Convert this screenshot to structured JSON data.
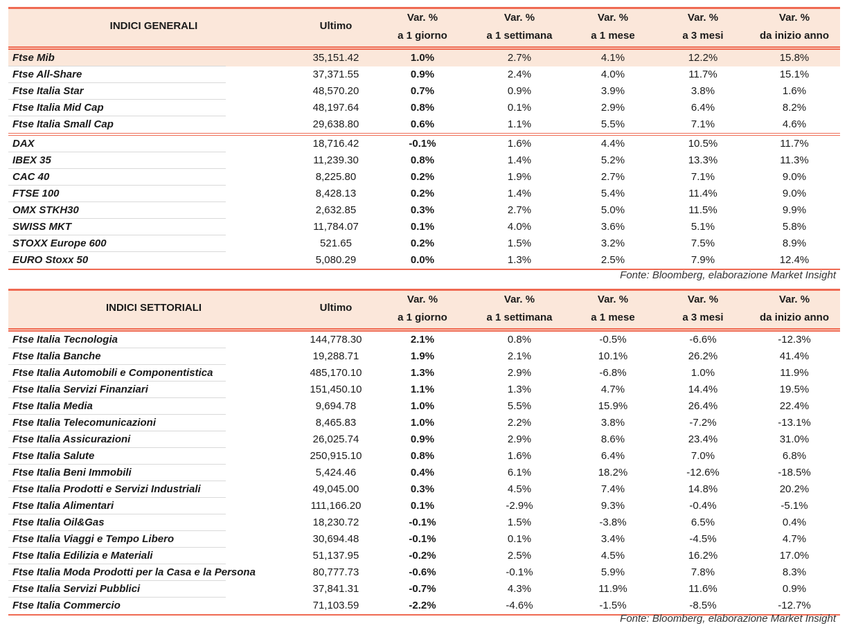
{
  "general": {
    "title": "INDICI GENERALI",
    "headers": {
      "ultimo": "Ultimo",
      "var": [
        "Var. %",
        "Var. %",
        "Var. %",
        "Var. %",
        "Var. %"
      ],
      "period": [
        "a 1 giorno",
        "a 1 settimana",
        "a 1 mese",
        "a 3 mesi",
        "da inizio anno"
      ]
    },
    "rows": [
      [
        "Ftse Mib",
        "35,151.42",
        "1.0%",
        "2.7%",
        "4.1%",
        "12.2%",
        "15.8%"
      ],
      [
        "Ftse All-Share",
        "37,371.55",
        "0.9%",
        "2.4%",
        "4.0%",
        "11.7%",
        "15.1%"
      ],
      [
        "Ftse Italia Star",
        "48,570.20",
        "0.7%",
        "0.9%",
        "3.9%",
        "3.8%",
        "1.6%"
      ],
      [
        "Ftse Italia Mid Cap",
        "48,197.64",
        "0.8%",
        "0.1%",
        "2.9%",
        "6.4%",
        "8.2%"
      ],
      [
        "Ftse Italia Small Cap",
        "29,638.80",
        "0.6%",
        "1.1%",
        "5.5%",
        "7.1%",
        "4.6%"
      ],
      [
        "DAX",
        "18,716.42",
        "-0.1%",
        "1.6%",
        "4.4%",
        "10.5%",
        "11.7%"
      ],
      [
        "IBEX 35",
        "11,239.30",
        "0.8%",
        "1.4%",
        "5.2%",
        "13.3%",
        "11.3%"
      ],
      [
        "CAC 40",
        "8,225.80",
        "0.2%",
        "1.9%",
        "2.7%",
        "7.1%",
        "9.0%"
      ],
      [
        "FTSE 100",
        "8,428.13",
        "0.2%",
        "1.4%",
        "5.4%",
        "11.4%",
        "9.0%"
      ],
      [
        "OMX STKH30",
        "2,632.85",
        "0.3%",
        "2.7%",
        "5.0%",
        "11.5%",
        "9.9%"
      ],
      [
        "SWISS MKT",
        "11,784.07",
        "0.1%",
        "4.0%",
        "3.6%",
        "5.1%",
        "5.8%"
      ],
      [
        "STOXX Europe 600",
        "521.65",
        "0.2%",
        "1.5%",
        "3.2%",
        "7.5%",
        "8.9%"
      ],
      [
        "EURO Stoxx 50",
        "5,080.29",
        "0.0%",
        "1.3%",
        "2.5%",
        "7.9%",
        "12.4%"
      ]
    ],
    "source": "Fonte: Bloomberg, elaborazione Market Insight"
  },
  "sector": {
    "title": "INDICI SETTORIALI",
    "headers": {
      "ultimo": "Ultimo",
      "var": [
        "Var. %",
        "Var. %",
        "Var. %",
        "Var. %",
        "Var. %"
      ],
      "period": [
        "a 1 giorno",
        "a 1 settimana",
        "a 1 mese",
        "a 3 mesi",
        "da inizio anno"
      ]
    },
    "rows": [
      [
        "Ftse Italia Tecnologia",
        "144,778.30",
        "2.1%",
        "0.8%",
        "-0.5%",
        "-6.6%",
        "-12.3%"
      ],
      [
        "Ftse Italia Banche",
        "19,288.71",
        "1.9%",
        "2.1%",
        "10.1%",
        "26.2%",
        "41.4%"
      ],
      [
        "Ftse Italia Automobili e Componentistica",
        "485,170.10",
        "1.3%",
        "2.9%",
        "-6.8%",
        "1.0%",
        "11.9%"
      ],
      [
        "Ftse Italia Servizi Finanziari",
        "151,450.10",
        "1.1%",
        "1.3%",
        "4.7%",
        "14.4%",
        "19.5%"
      ],
      [
        "Ftse Italia Media",
        "9,694.78",
        "1.0%",
        "5.5%",
        "15.9%",
        "26.4%",
        "22.4%"
      ],
      [
        "Ftse Italia Telecomunicazioni",
        "8,465.83",
        "1.0%",
        "2.2%",
        "3.8%",
        "-7.2%",
        "-13.1%"
      ],
      [
        "Ftse Italia Assicurazioni",
        "26,025.74",
        "0.9%",
        "2.9%",
        "8.6%",
        "23.4%",
        "31.0%"
      ],
      [
        "Ftse Italia Salute",
        "250,915.10",
        "0.8%",
        "1.6%",
        "6.4%",
        "7.0%",
        "6.8%"
      ],
      [
        "Ftse Italia Beni Immobili",
        "5,424.46",
        "0.4%",
        "6.1%",
        "18.2%",
        "-12.6%",
        "-18.5%"
      ],
      [
        "Ftse Italia Prodotti e Servizi Industriali",
        "49,045.00",
        "0.3%",
        "4.5%",
        "7.4%",
        "14.8%",
        "20.2%"
      ],
      [
        "Ftse Italia Alimentari",
        "111,166.20",
        "0.1%",
        "-2.9%",
        "9.3%",
        "-0.4%",
        "-5.1%"
      ],
      [
        "Ftse Italia Oil&Gas",
        "18,230.72",
        "-0.1%",
        "1.5%",
        "-3.8%",
        "6.5%",
        "0.4%"
      ],
      [
        "Ftse Italia Viaggi e Tempo Libero",
        "30,694.48",
        "-0.1%",
        "0.1%",
        "3.4%",
        "-4.5%",
        "4.7%"
      ],
      [
        "Ftse Italia Edilizia e Materiali",
        "51,137.95",
        "-0.2%",
        "2.5%",
        "4.5%",
        "16.2%",
        "17.0%"
      ],
      [
        "Ftse Italia Moda Prodotti per la Casa e la Persona",
        "80,777.73",
        "-0.6%",
        "-0.1%",
        "5.9%",
        "7.8%",
        "8.3%"
      ],
      [
        "Ftse Italia Servizi Pubblici",
        "37,841.31",
        "-0.7%",
        "4.3%",
        "11.9%",
        "11.6%",
        "0.9%"
      ],
      [
        "Ftse Italia Commercio",
        "71,103.59",
        "-2.2%",
        "-4.6%",
        "-1.5%",
        "-8.5%",
        "-12.7%"
      ]
    ],
    "source": "Fonte: Bloomberg, elaborazione Market Insight"
  },
  "colors": {
    "accent": "#ef6a52",
    "header_bg": "#fbe7da"
  }
}
